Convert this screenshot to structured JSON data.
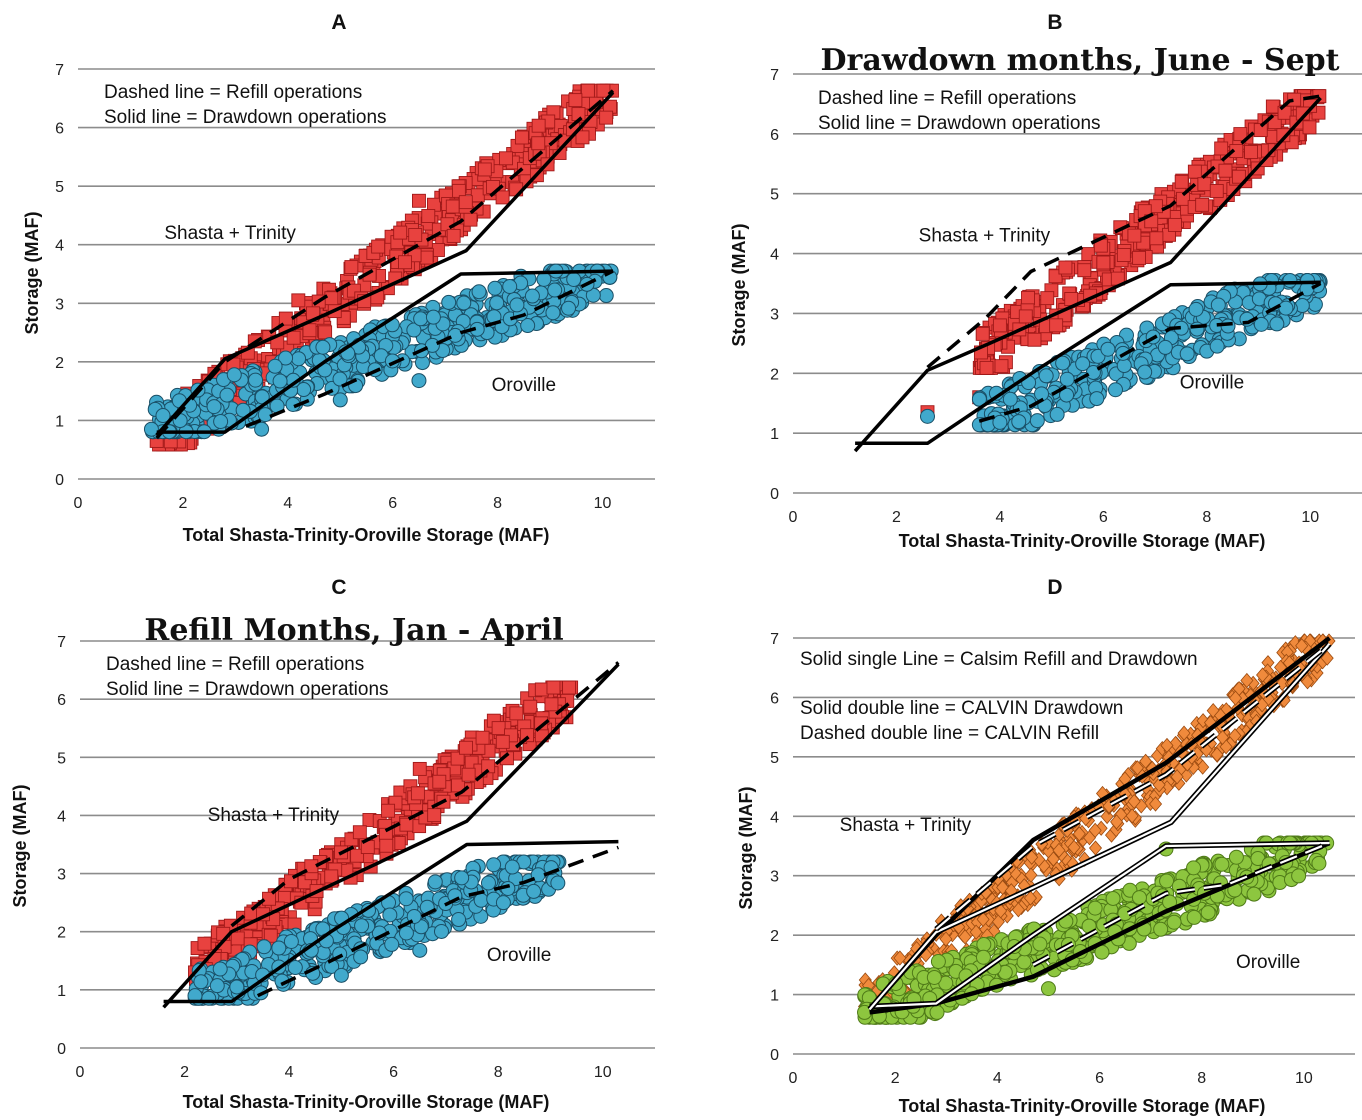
{
  "chart_data": [
    {
      "panel": "A",
      "type": "scatter",
      "title": "",
      "xlabel": "Total Shasta-Trinity-Oroville Storage (MAF)",
      "ylabel": "Storage (MAF)",
      "xlim": [
        0,
        11
      ],
      "ylim": [
        0,
        7
      ],
      "xticks": [
        "0",
        "2",
        "4",
        "6",
        "8",
        "10"
      ],
      "yticks": [
        "0",
        "1",
        "2",
        "3",
        "4",
        "5",
        "6",
        "7"
      ],
      "grid": "horizontal",
      "notes": [
        "Dashed line = Refill operations",
        "Solid line = Drawdown operations"
      ],
      "series_labels": [
        {
          "text": "Shasta + Trinity",
          "x": 2.9,
          "y": 4.1
        },
        {
          "text": "Oroville",
          "x": 8.5,
          "y": 1.5
        }
      ],
      "series": [
        {
          "marker": "square",
          "color": "#e8423f",
          "edge": "#a01818",
          "ranges": [
            [
              1.5,
              10.2,
              0.62,
              6.63,
              0.4,
              6.63,
              0.33,
              6.63
            ]
          ],
          "points": [
            [
              1.5,
              0.65
            ],
            [
              2.3,
              1.3
            ],
            [
              2.5,
              1.3
            ],
            [
              6.5,
              4.75
            ],
            [
              4.2,
              3.05
            ]
          ]
        },
        {
          "marker": "circle",
          "color": "#41a9cc",
          "edge": "#1a4f66",
          "ranges": [
            [
              1.4,
              10.2,
              0.85,
              3.55,
              0.85,
              3.55,
              0.85,
              2.9
            ]
          ],
          "points": [
            [
              1.4,
              0.85
            ],
            [
              6.5,
              1.68
            ],
            [
              3.5,
              0.85
            ],
            [
              5.0,
              1.35
            ]
          ]
        }
      ],
      "lines": [
        {
          "style": "solid",
          "pts": [
            [
              1.5,
              0.8
            ],
            [
              2.8,
              0.8
            ],
            [
              4.7,
              2.0
            ],
            [
              7.3,
              3.5
            ],
            [
              10.2,
              3.55
            ]
          ]
        },
        {
          "style": "solid",
          "pts": [
            [
              1.5,
              0.75
            ],
            [
              2.8,
              2.05
            ],
            [
              4.7,
              2.8
            ],
            [
              7.4,
              3.9
            ],
            [
              10.2,
              6.6
            ]
          ]
        },
        {
          "style": "dashed",
          "pts": [
            [
              1.5,
              0.7
            ],
            [
              2.8,
              2.0
            ],
            [
              4.7,
              3.1
            ],
            [
              7.3,
              4.4
            ],
            [
              10.2,
              6.63
            ]
          ]
        },
        {
          "style": "dashed",
          "pts": [
            [
              3.2,
              0.9
            ],
            [
              4.7,
              1.45
            ],
            [
              7.3,
              2.5
            ],
            [
              8.5,
              2.8
            ],
            [
              10.2,
              3.55
            ]
          ]
        }
      ]
    },
    {
      "panel": "B",
      "type": "scatter",
      "title": "Drawdown months, June - Sept",
      "xlabel": "Total Shasta-Trinity-Oroville  Storage (MAF)",
      "ylabel": "Storage (MAF)",
      "xlim": [
        0,
        11
      ],
      "ylim": [
        0,
        7
      ],
      "xticks": [
        "0",
        "2",
        "4",
        "6",
        "8",
        "10"
      ],
      "yticks": [
        "0",
        "1",
        "2",
        "3",
        "4",
        "5",
        "6",
        "7"
      ],
      "grid": "horizontal",
      "notes": [
        "Dashed line = Refill operations",
        "Solid line = Drawdown operations"
      ],
      "series_labels": [
        {
          "text": "Shasta + Trinity",
          "x": 3.7,
          "y": 4.2
        },
        {
          "text": "Oroville",
          "x": 8.1,
          "y": 1.75
        }
      ],
      "series": [
        {
          "marker": "square",
          "color": "#e8423f",
          "edge": "#a01818",
          "ranges": [
            [
              3.6,
              10.2,
              2.2,
              6.63,
              0.35,
              6.63,
              0.32,
              6.63
            ]
          ],
          "points": [
            [
              2.6,
              1.35
            ],
            [
              3.6,
              1.6
            ],
            [
              4.0,
              2.8
            ],
            [
              4.5,
              2.95
            ],
            [
              6.0,
              3.85
            ],
            [
              6.6,
              4.3
            ]
          ]
        },
        {
          "marker": "circle",
          "color": "#41a9cc",
          "edge": "#1a4f66",
          "ranges": [
            [
              3.6,
              10.2,
              1.2,
              3.55,
              1.2,
              3.55,
              1.2,
              3.1
            ]
          ],
          "points": [
            [
              2.6,
              1.28
            ],
            [
              4.0,
              1.18
            ],
            [
              5.3,
              1.9
            ]
          ]
        }
      ],
      "lines": [
        {
          "style": "solid",
          "pts": [
            [
              1.2,
              0.7
            ],
            [
              2.6,
              2.05
            ],
            [
              3.8,
              2.5
            ],
            [
              7.3,
              3.85
            ],
            [
              10.2,
              6.6
            ]
          ]
        },
        {
          "style": "solid",
          "pts": [
            [
              1.2,
              0.83
            ],
            [
              2.6,
              0.83
            ],
            [
              4.7,
              2.05
            ],
            [
              7.3,
              3.48
            ],
            [
              10.2,
              3.52
            ]
          ]
        },
        {
          "style": "dashed",
          "pts": [
            [
              2.6,
              2.1
            ],
            [
              3.7,
              2.9
            ],
            [
              4.6,
              3.7
            ],
            [
              7.3,
              4.8
            ],
            [
              9.6,
              6.55
            ],
            [
              10.2,
              6.63
            ]
          ]
        },
        {
          "style": "dashed",
          "pts": [
            [
              3.6,
              1.2
            ],
            [
              4.6,
              1.45
            ],
            [
              7.3,
              2.75
            ],
            [
              8.8,
              2.85
            ],
            [
              10.2,
              3.5
            ]
          ]
        }
      ]
    },
    {
      "panel": "C",
      "type": "scatter",
      "title": "Refill Months, Jan - April",
      "xlabel": "Total Shasta-Trinity-Oroville Storage (MAF)",
      "ylabel": "Storage (MAF)",
      "xlim": [
        0,
        11
      ],
      "ylim": [
        0,
        7
      ],
      "xticks": [
        "0",
        "2",
        "4",
        "6",
        "8",
        "10"
      ],
      "yticks": [
        "0",
        "1",
        "2",
        "3",
        "4",
        "5",
        "6",
        "7"
      ],
      "grid": "horizontal",
      "notes": [
        "Dashed line = Refill operations",
        "Solid line = Drawdown operations"
      ],
      "series_labels": [
        {
          "text": "Shasta + Trinity",
          "x": 3.7,
          "y": 3.9
        },
        {
          "text": "Oroville",
          "x": 8.4,
          "y": 1.5
        }
      ],
      "series": [
        {
          "marker": "square",
          "color": "#e8423f",
          "edge": "#a01818",
          "ranges": [
            [
              2.2,
              9.4,
              1.25,
              6.2,
              0.35,
              6.2,
              0.3,
              6.2
            ]
          ],
          "points": [
            [
              2.2,
              1.3
            ],
            [
              2.3,
              1.2
            ],
            [
              6.5,
              4.8
            ],
            [
              3.5,
              2.3
            ]
          ]
        },
        {
          "marker": "circle",
          "color": "#41a9cc",
          "edge": "#1a4f66",
          "ranges": [
            [
              2.2,
              9.2,
              0.9,
              3.2,
              0.9,
              3.2,
              0.9,
              2.8
            ]
          ],
          "points": [
            [
              2.2,
              0.9
            ],
            [
              3.0,
              1.05
            ],
            [
              6.5,
              1.68
            ],
            [
              5.0,
              1.25
            ],
            [
              8.1,
              2.5
            ]
          ]
        }
      ],
      "lines": [
        {
          "style": "solid",
          "pts": [
            [
              1.6,
              0.8
            ],
            [
              2.9,
              0.8
            ],
            [
              4.8,
              2.0
            ],
            [
              7.4,
              3.5
            ],
            [
              10.3,
              3.55
            ]
          ]
        },
        {
          "style": "solid",
          "pts": [
            [
              1.6,
              0.7
            ],
            [
              2.9,
              2.0
            ],
            [
              4.8,
              2.8
            ],
            [
              7.4,
              3.9
            ],
            [
              10.3,
              6.6
            ]
          ]
        },
        {
          "style": "dashed",
          "pts": [
            [
              2.9,
              2.1
            ],
            [
              4.0,
              2.9
            ],
            [
              7.3,
              4.4
            ],
            [
              10.3,
              6.63
            ]
          ]
        },
        {
          "style": "dashed",
          "pts": [
            [
              3.4,
              0.9
            ],
            [
              4.8,
              1.5
            ],
            [
              7.3,
              2.6
            ],
            [
              8.5,
              2.85
            ],
            [
              10.3,
              3.45
            ]
          ]
        }
      ]
    },
    {
      "panel": "D",
      "type": "scatter",
      "title": "",
      "xlabel": "Total Shasta-Trinity-Oroville Storage (MAF)",
      "ylabel": "Storage (MAF)",
      "xlim": [
        0,
        11
      ],
      "ylim": [
        0,
        7
      ],
      "xticks": [
        "0",
        "2",
        "4",
        "6",
        "8",
        "10"
      ],
      "yticks": [
        "0",
        "1",
        "2",
        "3",
        "4",
        "5",
        "6",
        "7"
      ],
      "grid": "horizontal",
      "notes": [
        "Solid single Line = Calsim Refill and Drawdown",
        "Solid double line = CALVIN Drawdown",
        "Dashed double line = CALVIN Refill"
      ],
      "series_labels": [
        {
          "text": "Shasta + Trinity",
          "x": 2.2,
          "y": 3.75
        },
        {
          "text": "Oroville",
          "x": 9.3,
          "y": 1.45
        }
      ],
      "series": [
        {
          "marker": "diamond",
          "color": "#f08a3c",
          "edge": "#9a4a10",
          "ranges": [
            [
              1.4,
              10.5,
              0.8,
              6.95,
              0.6,
              6.95,
              0.45,
              6.95
            ]
          ],
          "points": [
            [
              1.4,
              0.8
            ]
          ]
        },
        {
          "marker": "circle",
          "color": "#8dc63f",
          "edge": "#4f7a18",
          "ranges": [
            [
              1.4,
              10.5,
              0.65,
              3.55,
              0.65,
              3.55,
              0.65,
              3.0
            ]
          ],
          "points": [
            [
              1.4,
              0.7
            ],
            [
              7.3,
              3.45
            ],
            [
              5.0,
              1.1
            ]
          ]
        }
      ],
      "lines": [
        {
          "style": "solid-bold",
          "pts": [
            [
              1.5,
              0.75
            ],
            [
              2.8,
              2.0
            ],
            [
              4.7,
              3.6
            ],
            [
              7.3,
              4.9
            ],
            [
              10.5,
              7.0
            ]
          ]
        },
        {
          "style": "solid-bold",
          "pts": [
            [
              1.5,
              0.7
            ],
            [
              2.8,
              0.85
            ],
            [
              4.7,
              1.3
            ],
            [
              7.3,
              2.4
            ],
            [
              10.5,
              3.55
            ]
          ]
        },
        {
          "style": "double",
          "pts": [
            [
              1.5,
              0.8
            ],
            [
              2.8,
              0.85
            ],
            [
              4.7,
              2.0
            ],
            [
              7.3,
              3.5
            ],
            [
              10.5,
              3.55
            ]
          ]
        },
        {
          "style": "double",
          "pts": [
            [
              1.5,
              0.75
            ],
            [
              2.8,
              2.05
            ],
            [
              4.7,
              2.8
            ],
            [
              7.4,
              3.9
            ],
            [
              10.5,
              6.9
            ]
          ]
        },
        {
          "style": "double-dashed",
          "pts": [
            [
              2.8,
              2.1
            ],
            [
              4.7,
              3.5
            ],
            [
              7.3,
              4.7
            ],
            [
              10.5,
              6.9
            ]
          ]
        },
        {
          "style": "double-dashed",
          "pts": [
            [
              4.7,
              1.5
            ],
            [
              7.3,
              2.7
            ],
            [
              8.5,
              2.85
            ],
            [
              10.5,
              3.55
            ]
          ]
        }
      ]
    }
  ]
}
